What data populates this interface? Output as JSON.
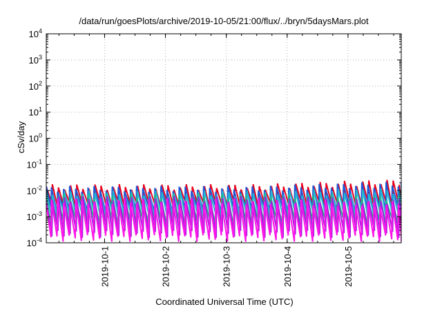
{
  "chart_data": {
    "type": "line",
    "title": "/data/run/goesPlots/archive/2019-10-05/21:00/flux/../bryn/5daysMars.plot",
    "xlabel": "Coordinated Universal Time (UTC)",
    "ylabel": "cSv/day",
    "yscale": "log",
    "ylim": [
      0.0001,
      10000
    ],
    "xlim": [
      "2019-09-30T01:00",
      "2019-10-05T21:00"
    ],
    "grid": true,
    "y_ticks": [
      {
        "base": "10",
        "exp": "-4"
      },
      {
        "base": "10",
        "exp": "-3"
      },
      {
        "base": "10",
        "exp": "-2"
      },
      {
        "base": "10",
        "exp": "-1"
      },
      {
        "base": "10",
        "exp": "0"
      },
      {
        "base": "10",
        "exp": "1"
      },
      {
        "base": "10",
        "exp": "2"
      },
      {
        "base": "10",
        "exp": "3"
      },
      {
        "base": "10",
        "exp": "4"
      }
    ],
    "x_ticks": [
      {
        "label": "2019-10-1",
        "t": "2019-10-01T00:00"
      },
      {
        "label": "2019-10-2",
        "t": "2019-10-02T00:00"
      },
      {
        "label": "2019-10-3",
        "t": "2019-10-03T00:00"
      },
      {
        "label": "2019-10-4",
        "t": "2019-10-04T00:00"
      },
      {
        "label": "2019-10-5",
        "t": "2019-10-05T00:00"
      }
    ],
    "sawtooth_period_hours": 2.4,
    "series": [
      {
        "color": "#e8001c",
        "peak": 0.014,
        "trough": 0.0025,
        "end_peak": 0.022
      },
      {
        "color": "#1f57d6",
        "peak": 0.012,
        "trough": 0.002,
        "end_peak": 0.018
      },
      {
        "color": "#26b8d2",
        "peak": 0.008,
        "trough": 0.001,
        "end_peak": 0.01
      },
      {
        "color": "#1fb88a",
        "peak": 0.006,
        "trough": 0.0007,
        "end_peak": 0.005
      },
      {
        "color": "#a11ee0",
        "peak": 0.005,
        "trough": 0.00022,
        "end_peak": 0.004
      },
      {
        "color": "#ff14e8",
        "peak": 0.004,
        "trough": 0.00015,
        "end_peak": 0.003
      }
    ]
  }
}
